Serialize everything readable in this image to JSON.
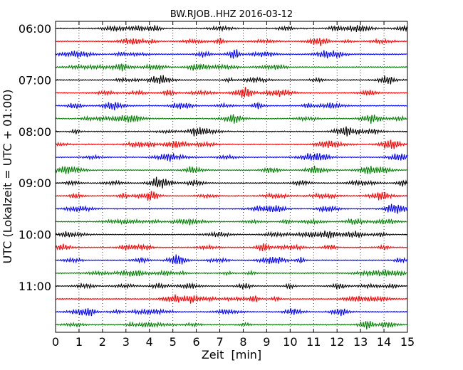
{
  "chart_data": {
    "type": "line",
    "title": "BW.RJOB..HHZ 2016-03-12",
    "xlabel": "Zeit  [min]",
    "ylabel": "UTC (Lokalzeit = UTC + 01:00)",
    "xlim": [
      0,
      15
    ],
    "x_ticks": [
      "0",
      "1",
      "2",
      "3",
      "4",
      "5",
      "6",
      "7",
      "8",
      "9",
      "10",
      "11",
      "12",
      "13",
      "14",
      "15"
    ],
    "y_ticks": [
      "06:00",
      "07:00",
      "08:00",
      "09:00",
      "10:00",
      "11:00"
    ],
    "grid": "vertical dotted",
    "trace_interval_min": 15,
    "trace_colors": [
      "#000000",
      "#ff0000",
      "#0000ff",
      "#008000"
    ],
    "series": [
      {
        "start": "06:00"
      },
      {
        "start": "06:15"
      },
      {
        "start": "06:30"
      },
      {
        "start": "06:45"
      },
      {
        "start": "07:00"
      },
      {
        "start": "07:15"
      },
      {
        "start": "07:30"
      },
      {
        "start": "07:45"
      },
      {
        "start": "08:00"
      },
      {
        "start": "08:15"
      },
      {
        "start": "08:30"
      },
      {
        "start": "08:45"
      },
      {
        "start": "09:00"
      },
      {
        "start": "09:15"
      },
      {
        "start": "09:30"
      },
      {
        "start": "09:45"
      },
      {
        "start": "10:00"
      },
      {
        "start": "10:15"
      },
      {
        "start": "10:30"
      },
      {
        "start": "10:45"
      },
      {
        "start": "11:00"
      },
      {
        "start": "11:15"
      },
      {
        "start": "11:30"
      },
      {
        "start": "11:45"
      }
    ]
  }
}
